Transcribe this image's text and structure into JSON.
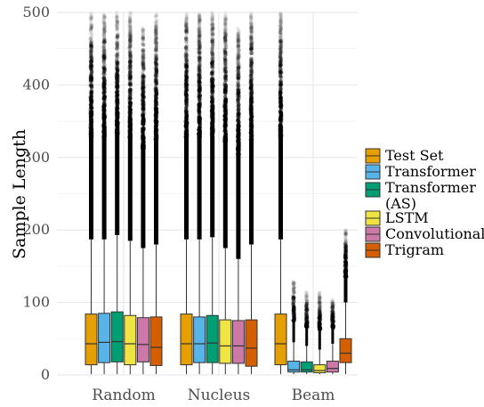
{
  "chart_data": {
    "type": "boxplot",
    "ylabel": "Sample Length",
    "ylim": [
      0,
      500
    ],
    "yticks": [
      0,
      100,
      200,
      300,
      400,
      500
    ],
    "grid": true,
    "legend_position": "right",
    "groups": [
      "Random",
      "Nucleus",
      "Beam"
    ],
    "series": [
      {
        "name": "Test Set",
        "color": "#E69F00",
        "stats": [
          {
            "q1": 14,
            "median": 43,
            "q3": 84,
            "whisker_low": 1,
            "whisker_high": 187,
            "outlier_max": 500,
            "outlier_density": "heavy"
          },
          {
            "q1": 14,
            "median": 43,
            "q3": 84,
            "whisker_low": 1,
            "whisker_high": 187,
            "outlier_max": 500,
            "outlier_density": "heavy"
          },
          {
            "q1": 14,
            "median": 43,
            "q3": 84,
            "whisker_low": 1,
            "whisker_high": 187,
            "outlier_max": 500,
            "outlier_density": "heavy"
          }
        ]
      },
      {
        "name": "Transformer",
        "color": "#56B4E9",
        "stats": [
          {
            "q1": 17,
            "median": 45,
            "q3": 85,
            "whisker_low": 1,
            "whisker_high": 187,
            "outlier_max": 500,
            "outlier_density": "heavy"
          },
          {
            "q1": 17,
            "median": 43,
            "q3": 80,
            "whisker_low": 1,
            "whisker_high": 187,
            "outlier_max": 500,
            "outlier_density": "heavy"
          },
          {
            "q1": 4,
            "median": 7,
            "q3": 19,
            "whisker_low": 1,
            "whisker_high": 45,
            "outlier_max": 130,
            "outlier_density": "light"
          }
        ]
      },
      {
        "name": "Transformer (AS)",
        "color": "#009E73",
        "stats": [
          {
            "q1": 18,
            "median": 46,
            "q3": 87,
            "whisker_low": 1,
            "whisker_high": 193,
            "outlier_max": 500,
            "outlier_density": "heavy"
          },
          {
            "q1": 17,
            "median": 44,
            "q3": 82,
            "whisker_low": 1,
            "whisker_high": 190,
            "outlier_max": 500,
            "outlier_density": "heavy"
          },
          {
            "q1": 4,
            "median": 7,
            "q3": 18,
            "whisker_low": 1,
            "whisker_high": 40,
            "outlier_max": 115,
            "outlier_density": "light"
          }
        ]
      },
      {
        "name": "LSTM",
        "color": "#F0E442",
        "stats": [
          {
            "q1": 14,
            "median": 43,
            "q3": 82,
            "whisker_low": 1,
            "whisker_high": 185,
            "outlier_max": 500,
            "outlier_density": "heavy"
          },
          {
            "q1": 16,
            "median": 40,
            "q3": 76,
            "whisker_low": 1,
            "whisker_high": 175,
            "outlier_max": 500,
            "outlier_density": "heavy"
          },
          {
            "q1": 3,
            "median": 6,
            "q3": 14,
            "whisker_low": 1,
            "whisker_high": 35,
            "outlier_max": 115,
            "outlier_density": "light"
          }
        ]
      },
      {
        "name": "Convolutional",
        "color": "#CC79A7",
        "stats": [
          {
            "q1": 18,
            "median": 42,
            "q3": 79,
            "whisker_low": 1,
            "whisker_high": 175,
            "outlier_max": 480,
            "outlier_density": "heavy"
          },
          {
            "q1": 16,
            "median": 40,
            "q3": 75,
            "whisker_low": 1,
            "whisker_high": 160,
            "outlier_max": 480,
            "outlier_density": "heavy"
          },
          {
            "q1": 4,
            "median": 9,
            "q3": 19,
            "whisker_low": 1,
            "whisker_high": 43,
            "outlier_max": 105,
            "outlier_density": "light"
          }
        ]
      },
      {
        "name": "Trigram",
        "color": "#D55E00",
        "stats": [
          {
            "q1": 13,
            "median": 38,
            "q3": 80,
            "whisker_low": 1,
            "whisker_high": 180,
            "outlier_max": 500,
            "outlier_density": "heavy"
          },
          {
            "q1": 12,
            "median": 37,
            "q3": 76,
            "whisker_low": 1,
            "whisker_high": 180,
            "outlier_max": 500,
            "outlier_density": "heavy"
          },
          {
            "q1": 17,
            "median": 30,
            "q3": 50,
            "whisker_low": 1,
            "whisker_high": 100,
            "outlier_max": 200,
            "outlier_density": "medium"
          }
        ]
      }
    ]
  },
  "legend": {
    "items": [
      {
        "lines": [
          "Test Set"
        ]
      },
      {
        "lines": [
          "Transformer"
        ]
      },
      {
        "lines": [
          "Transformer",
          "(AS)"
        ]
      },
      {
        "lines": [
          "LSTM"
        ]
      },
      {
        "lines": [
          "Convolutional"
        ]
      },
      {
        "lines": [
          "Trigram"
        ]
      }
    ]
  }
}
